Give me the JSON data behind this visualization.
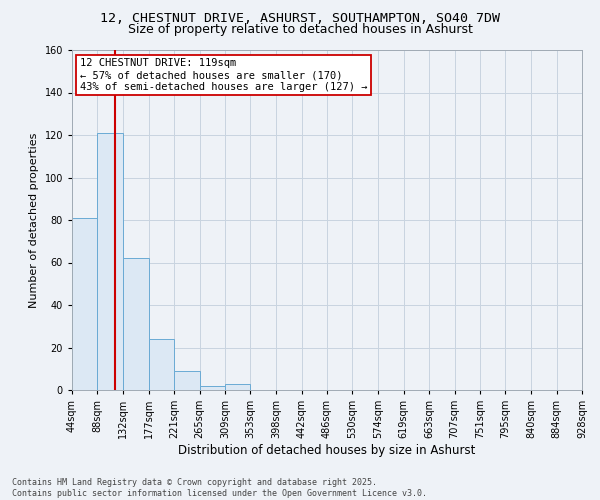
{
  "title1": "12, CHESTNUT DRIVE, ASHURST, SOUTHAMPTON, SO40 7DW",
  "title2": "Size of property relative to detached houses in Ashurst",
  "xlabel": "Distribution of detached houses by size in Ashurst",
  "ylabel": "Number of detached properties",
  "bin_edges": [
    44,
    88,
    132,
    177,
    221,
    265,
    309,
    353,
    398,
    442,
    486,
    530,
    574,
    619,
    663,
    707,
    751,
    795,
    840,
    884,
    928
  ],
  "bar_heights": [
    81,
    121,
    62,
    24,
    9,
    2,
    3,
    0,
    0,
    0,
    0,
    0,
    0,
    0,
    0,
    0,
    0,
    0,
    0,
    0
  ],
  "bar_fill_color": "#dce8f4",
  "bar_edge_color": "#6aaad4",
  "grid_color": "#c8d4e0",
  "property_size": 119,
  "red_line_color": "#cc0000",
  "annotation_line1": "12 CHESTNUT DRIVE: 119sqm",
  "annotation_line2": "← 57% of detached houses are smaller (170)",
  "annotation_line3": "43% of semi-detached houses are larger (127) →",
  "annotation_box_color": "#ffffff",
  "annotation_border_color": "#cc0000",
  "ylim": [
    0,
    160
  ],
  "yticks": [
    0,
    20,
    40,
    60,
    80,
    100,
    120,
    140,
    160
  ],
  "footer_text": "Contains HM Land Registry data © Crown copyright and database right 2025.\nContains public sector information licensed under the Open Government Licence v3.0.",
  "bg_color": "#eef2f7",
  "title1_fontsize": 9.5,
  "title2_fontsize": 9,
  "tick_label_fontsize": 7,
  "ylabel_fontsize": 8,
  "xlabel_fontsize": 8.5,
  "annotation_fontsize": 7.5,
  "footer_fontsize": 6
}
